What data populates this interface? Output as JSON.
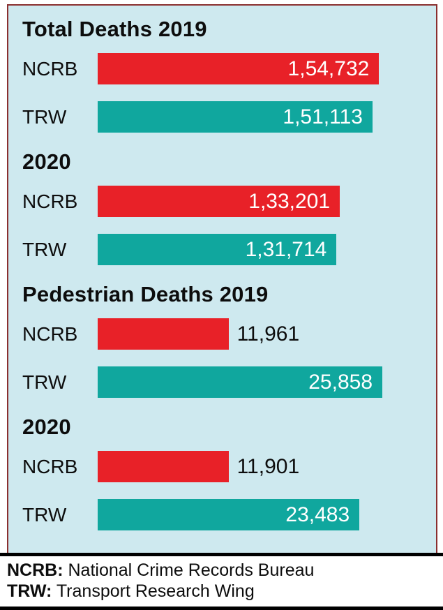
{
  "colors": {
    "red": "#e82128",
    "teal": "#10a79e",
    "panel_background": "#cee9ef",
    "value_inside_text": "#ffffff",
    "value_outside_text": "#0d0d0d",
    "panel_border": "#8a2f2f",
    "footer_rule": "#000000"
  },
  "chart_data": {
    "type": "bar",
    "orientation": "horizontal",
    "legend_position": "none",
    "grid": false,
    "sections": [
      {
        "title": "Total Deaths 2019",
        "rows": [
          {
            "label": "NCRB",
            "value": 154732,
            "display": "1,54,732",
            "color": "red",
            "bar_pct": 86,
            "value_inside": true
          },
          {
            "label": "TRW",
            "value": 151113,
            "display": "1,51,113",
            "color": "teal",
            "bar_pct": 84,
            "value_inside": true
          }
        ]
      },
      {
        "title": "2020",
        "rows": [
          {
            "label": "NCRB",
            "value": 133201,
            "display": "1,33,201",
            "color": "red",
            "bar_pct": 74,
            "value_inside": true
          },
          {
            "label": "TRW",
            "value": 131714,
            "display": "1,31,714",
            "color": "teal",
            "bar_pct": 73,
            "value_inside": true
          }
        ]
      },
      {
        "title": "Pedestrian Deaths 2019",
        "rows": [
          {
            "label": "NCRB",
            "value": 11961,
            "display": "11,961",
            "color": "red",
            "bar_pct": 40,
            "value_inside": false
          },
          {
            "label": "TRW",
            "value": 25858,
            "display": "25,858",
            "color": "teal",
            "bar_pct": 87,
            "value_inside": true
          }
        ]
      },
      {
        "title": "2020",
        "rows": [
          {
            "label": "NCRB",
            "value": 11901,
            "display": "11,901",
            "color": "red",
            "bar_pct": 40,
            "value_inside": false
          },
          {
            "label": "TRW",
            "value": 23483,
            "display": "23,483",
            "color": "teal",
            "bar_pct": 80,
            "value_inside": true
          }
        ]
      }
    ],
    "footnotes": [
      {
        "abbr": "NCRB:",
        "text": "National Crime Records Bureau"
      },
      {
        "abbr": "TRW:",
        "text": "Transport Research Wing"
      }
    ]
  }
}
